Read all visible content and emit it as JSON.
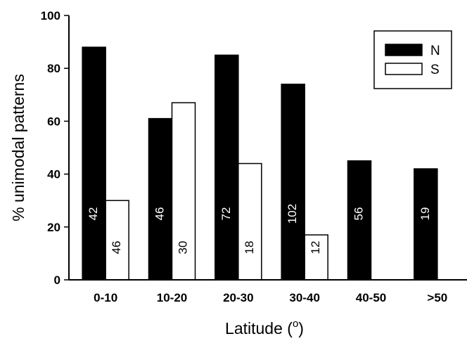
{
  "chart_data": {
    "type": "bar",
    "xlabel": "Latitude (",
    "xlabel_sup": "o",
    "xlabel_end": ")",
    "ylabel": "% unimodal patterns",
    "ylim": [
      0,
      100
    ],
    "yticks": [
      0,
      20,
      40,
      60,
      80,
      100
    ],
    "categories": [
      "0-10",
      "10-20",
      "20-30",
      "30-40",
      "40-50",
      ">50"
    ],
    "series": [
      {
        "name": "N",
        "color": "#000000",
        "values": [
          88,
          61,
          85,
          74,
          45,
          42
        ],
        "bar_labels": [
          "42",
          "46",
          "72",
          "102",
          "56",
          "19"
        ]
      },
      {
        "name": "S",
        "color": "#ffffff",
        "values": [
          30,
          67,
          44,
          17,
          null,
          null
        ],
        "bar_labels": [
          "46",
          "30",
          "18",
          "12",
          null,
          null
        ]
      }
    ],
    "legend_position": "top-right",
    "grid": false
  }
}
